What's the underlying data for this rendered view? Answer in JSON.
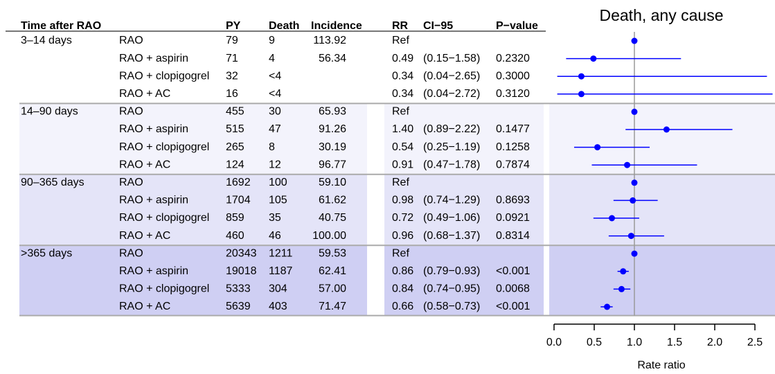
{
  "table": {
    "header": {
      "time": "Time after RAO",
      "py": "PY",
      "death": "Death",
      "incidence": "Incidence",
      "rr": "RR",
      "ci": "CI−95",
      "p": "P−value"
    },
    "groups": [
      {
        "label": "3–14 days",
        "rows": [
          [
            "RAO",
            "79",
            "9",
            "113.92",
            "Ref",
            null,
            null
          ],
          [
            "RAO + aspirin",
            "71",
            "4",
            "56.34",
            "0.49",
            "(0.15−1.58)",
            "0.2320"
          ],
          [
            "RAO + clopigogrel",
            "32",
            "<4",
            null,
            "0.34",
            "(0.04−2.65)",
            "0.3000"
          ],
          [
            "RAO + AC",
            "16",
            "<4",
            null,
            "0.34",
            "(0.04−2.72)",
            "0.3120"
          ]
        ]
      },
      {
        "label": "14–90 days",
        "rows": [
          [
            "RAO",
            "455",
            "30",
            "65.93",
            "Ref",
            null,
            null
          ],
          [
            "RAO + aspirin",
            "515",
            "47",
            "91.26",
            "1.40",
            "(0.89−2.22)",
            "0.1477"
          ],
          [
            "RAO + clopigogrel",
            "265",
            "8",
            "30.19",
            "0.54",
            "(0.25−1.19)",
            "0.1258"
          ],
          [
            "RAO + AC",
            "124",
            "12",
            "96.77",
            "0.91",
            "(0.47−1.78)",
            "0.7874"
          ]
        ]
      },
      {
        "label": "90–365 days",
        "rows": [
          [
            "RAO",
            "1692",
            "100",
            "59.10",
            "Ref",
            null,
            null
          ],
          [
            "RAO + aspirin",
            "1704",
            "105",
            "61.62",
            "0.98",
            "(0.74−1.29)",
            "0.8693"
          ],
          [
            "RAO + clopigogrel",
            "859",
            "35",
            "40.75",
            "0.72",
            "(0.49−1.06)",
            "0.0921"
          ],
          [
            "RAO + AC",
            "460",
            "46",
            "100.00",
            "0.96",
            "(0.68−1.37)",
            "0.8314"
          ]
        ]
      },
      {
        "label": ">365 days",
        "rows": [
          [
            "RAO",
            "20343",
            "1211",
            "59.53",
            "Ref",
            null,
            null
          ],
          [
            "RAO + aspirin",
            "19018",
            "1187",
            "62.41",
            "0.86",
            "(0.79−0.93)",
            "<0.001"
          ],
          [
            "RAO + clopigogrel",
            "5333",
            "304",
            "57.00",
            "0.84",
            "(0.74−0.95)",
            "0.0068"
          ],
          [
            "RAO + AC",
            "5639",
            "403",
            "71.47",
            "0.66",
            "(0.58−0.73)",
            "<0.001"
          ]
        ]
      }
    ]
  },
  "chart_data": {
    "type": "forest",
    "title": "Death, any cause",
    "xlabel": "Rate ratio",
    "color": "#0000ff",
    "values": [
      1,
      0.49,
      0.34,
      0.34,
      1,
      1.4,
      0.54,
      0.91,
      1,
      0.98,
      0.72,
      0.96,
      1,
      0.86,
      0.84,
      0.66
    ],
    "lower": [
      null,
      0.15,
      0.04,
      0.04,
      null,
      0.89,
      0.25,
      0.47,
      null,
      0.74,
      0.49,
      0.68,
      null,
      0.79,
      0.74,
      0.58
    ],
    "upper": [
      null,
      1.58,
      2.65,
      2.72,
      null,
      2.22,
      1.19,
      1.78,
      null,
      1.29,
      1.06,
      1.37,
      null,
      0.93,
      0.95,
      0.73
    ],
    "reference": 1,
    "xlim": [
      -0.06,
      2.75
    ],
    "xticks": [
      {
        "value": 0,
        "label": "0.0"
      },
      0.5,
      {
        "value": 1,
        "label": "1.0"
      },
      1.5,
      {
        "value": 2,
        "label": "2.0"
      },
      2.5
    ]
  }
}
